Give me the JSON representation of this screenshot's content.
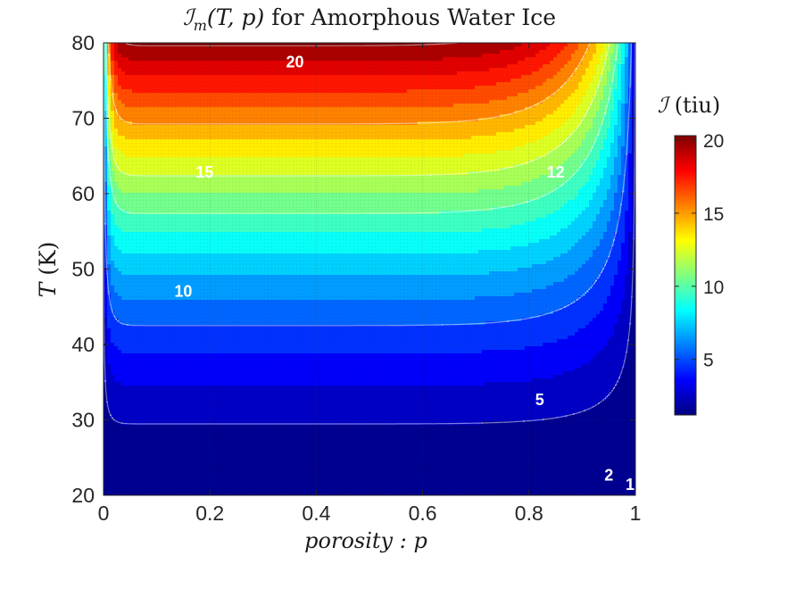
{
  "chart_data": {
    "type": "heatmap",
    "subtype": "filled-contour",
    "title": {
      "symbol": "ℐ",
      "subscript": "m",
      "args": "(T, p)",
      "rest": " for Amorphous Water Ice"
    },
    "xlabel": "porosity :  p",
    "ylabel": {
      "var": "T",
      "unit": " (K)"
    },
    "x_ticks": [
      "0",
      "0.2",
      "0.4",
      "0.6",
      "0.8",
      "1"
    ],
    "x_tick_values": [
      0,
      0.2,
      0.4,
      0.6,
      0.8,
      1.0
    ],
    "y_ticks": [
      "20",
      "30",
      "40",
      "50",
      "60",
      "70",
      "80"
    ],
    "y_tick_values": [
      20,
      30,
      40,
      50,
      60,
      70,
      80
    ],
    "xlim": [
      0,
      1
    ],
    "ylim": [
      20,
      80
    ],
    "grid": true,
    "colorbar": {
      "label_symbol": "ℐ",
      "label_unit": " (tiu)",
      "ticks": [
        "5",
        "10",
        "15",
        "20"
      ],
      "tick_values": [
        5,
        10,
        15,
        20
      ],
      "range": [
        1.2,
        20.3
      ],
      "colormap": "jet"
    },
    "contour_lines": [
      {
        "level": 20,
        "label": "20"
      },
      {
        "level": 15,
        "label": "15"
      },
      {
        "level": 12,
        "label": "12"
      },
      {
        "level": 10,
        "label": "10"
      },
      {
        "level": 5,
        "label": "5"
      },
      {
        "level": 2,
        "label": "2"
      },
      {
        "level": 1,
        "label": "1"
      }
    ],
    "contour_label_positions": [
      {
        "label": "20",
        "p": 0.36,
        "T": 77.3
      },
      {
        "label": "15",
        "p": 0.19,
        "T": 62.7
      },
      {
        "label": "12",
        "p": 0.85,
        "T": 62.7
      },
      {
        "label": "10",
        "p": 0.15,
        "T": 46.9
      },
      {
        "label": "5",
        "p": 0.82,
        "T": 32.5
      },
      {
        "label": "2",
        "p": 0.95,
        "T": 22.5
      },
      {
        "label": "1",
        "p": 0.99,
        "T": 21.3
      }
    ],
    "level_step": 1,
    "model": {
      "formula": "I = 1 + 19.2 * s(T) * g(p)",
      "s_of_T": "((T-20)/60)^1.6",
      "g_of_p": "(1 - p^10) * (1 - exp(-p/0.01)) then ^0.6"
    },
    "colors": {
      "low": "#00008f",
      "high": "#800000",
      "contour_line": "#ffffff",
      "label_text": "#ffffff"
    }
  }
}
